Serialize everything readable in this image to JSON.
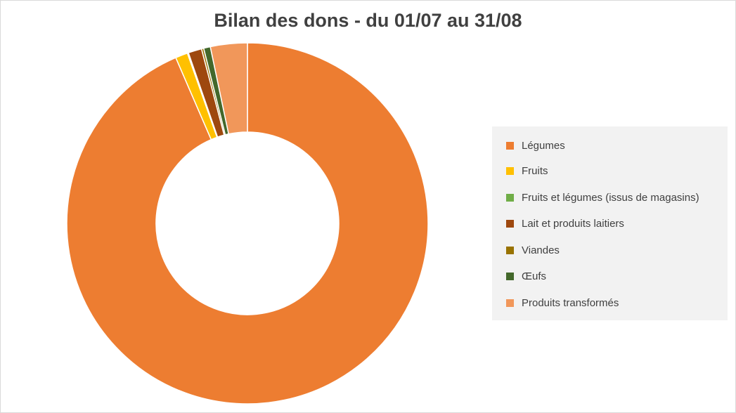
{
  "chart_data": {
    "type": "pie",
    "title": "Bilan des dons - du 01/07 au 31/08",
    "legend_position": "right",
    "categories": [
      "Légumes",
      "Fruits",
      "Fruits et légumes (issus de magasins)",
      "Lait et produits laitiers",
      "Viandes",
      "Œufs",
      "Produits transformés"
    ],
    "values": [
      93.6,
      1.1,
      0.1,
      1.2,
      0.2,
      0.6,
      3.3
    ],
    "colors": [
      "#ED7D31",
      "#FFC000",
      "#70AD47",
      "#9E480E",
      "#997300",
      "#43682B",
      "#F1975A"
    ]
  }
}
